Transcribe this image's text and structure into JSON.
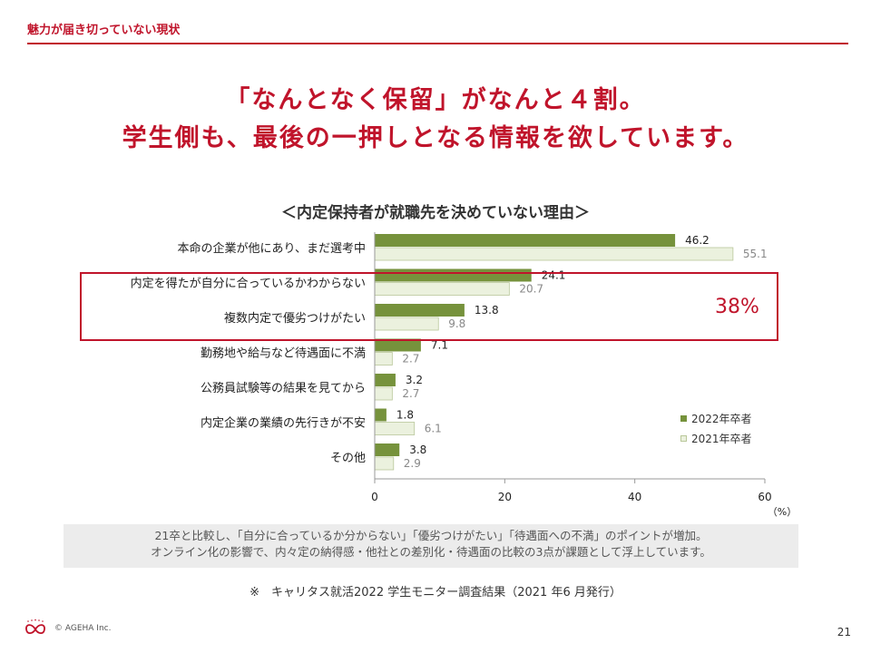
{
  "header": {
    "section_title": "魅力が届き切っていない現状",
    "headline_line1": "「なんとなく保留」がなんと４割。",
    "headline_line2": "学生側も、最後の一押しとなる情報を欲しています。"
  },
  "highlight": {
    "label": "38%"
  },
  "note": {
    "line1": "21卒と比較し、「自分に合っているか分からない」「優劣つけがたい」「待遇面への不満」のポイントが増加。",
    "line2": "オンライン化の影響で、内々定の納得感・他社との差別化・待遇面の比較の3点が課題として浮上しています。"
  },
  "source": "※　キャリタス就活2022 学生モニター調査結果（2021 年6 月発行）",
  "footer": {
    "copyright": "© AGEHA Inc.",
    "page_number": "21"
  },
  "colors": {
    "accent": "#c0142b",
    "series_2022": "#76923c",
    "series_2021": "#ebf1de",
    "series_2021_border": "#b9c79a"
  },
  "chart_data": {
    "type": "bar",
    "orientation": "horizontal",
    "title": "＜内定保持者が就職先を決めていない理由＞",
    "unit_label": "（%）",
    "categories": [
      "本命の企業が他にあり、まだ選考中",
      "内定を得たが自分に合っているかわからない",
      "複数内定で優劣つけがたい",
      "勤務地や給与など待遇面に不満",
      "公務員試験等の結果を見てから",
      "内定企業の業績の先行きが不安",
      "その他"
    ],
    "series": [
      {
        "name": "2022年卒者",
        "values": [
          46.2,
          24.1,
          13.8,
          7.1,
          3.2,
          1.8,
          3.8
        ],
        "labels": [
          "46.2",
          "24.1",
          "13.8",
          "7.1",
          "3.2",
          "1.8",
          "3.8"
        ]
      },
      {
        "name": "2021年卒者",
        "values": [
          55.1,
          20.7,
          9.8,
          2.7,
          2.7,
          6.1,
          2.9
        ],
        "labels": [
          "55.1",
          "20.7",
          "9.8",
          "2.7",
          "2.7",
          "6.1",
          "2.9"
        ]
      }
    ],
    "xlim": [
      0,
      60
    ],
    "xticks": [
      "0",
      "20",
      "40",
      "60"
    ],
    "legend_position": "bottom-right",
    "grid": false
  }
}
